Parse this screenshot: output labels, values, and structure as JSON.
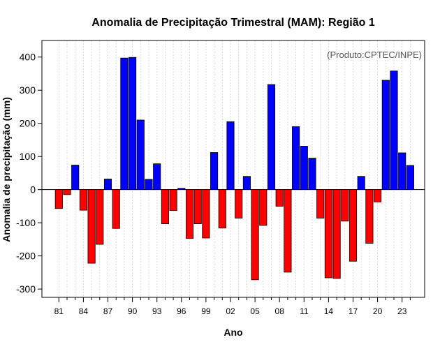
{
  "chart_data": {
    "type": "bar",
    "title": "Anomalia de Precipitação Trimestral (MAM): Região 1",
    "xlabel": "Ano",
    "ylabel": "Anomalia de precipitação (mm)",
    "credit": "(Produto:CPTEC/INPE)",
    "ylim": [
      -325,
      450
    ],
    "yticks": [
      -300,
      -200,
      -100,
      0,
      100,
      200,
      300,
      400
    ],
    "xtick_labels": [
      "81",
      "84",
      "87",
      "90",
      "93",
      "96",
      "99",
      "02",
      "05",
      "08",
      "11",
      "14",
      "17",
      "20",
      "23"
    ],
    "grid": true,
    "colors": {
      "positive": "#0000ff",
      "negative": "#ff0000"
    },
    "years": [
      1981,
      1982,
      1983,
      1984,
      1985,
      1986,
      1987,
      1988,
      1989,
      1990,
      1991,
      1992,
      1993,
      1994,
      1995,
      1996,
      1997,
      1998,
      1999,
      2000,
      2001,
      2002,
      2003,
      2004,
      2005,
      2006,
      2007,
      2008,
      2009,
      2010,
      2011,
      2012,
      2013,
      2014,
      2015,
      2016,
      2017,
      2018,
      2019,
      2020,
      2021,
      2022,
      2023,
      2024
    ],
    "values": [
      -57,
      -15,
      74,
      -62,
      -222,
      -165,
      32,
      -117,
      397,
      399,
      210,
      31,
      78,
      -103,
      -63,
      4,
      -147,
      -103,
      -146,
      112,
      -116,
      205,
      -86,
      40,
      -272,
      -108,
      317,
      -50,
      -249,
      190,
      131,
      95,
      -86,
      -266,
      -268,
      -95,
      -216,
      40,
      -162,
      -37,
      330,
      358,
      111,
      73
    ]
  }
}
